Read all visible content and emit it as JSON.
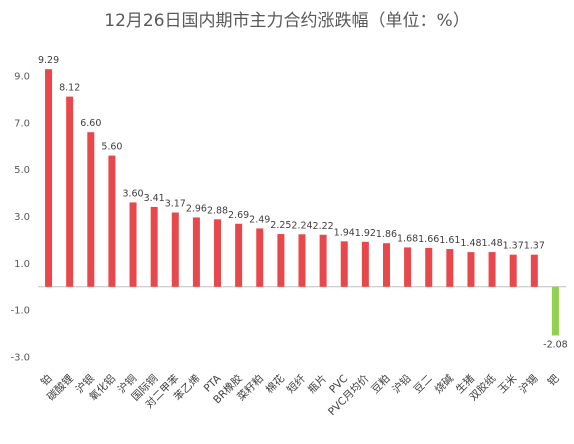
{
  "chart_data": {
    "type": "bar",
    "title": "12月26日国内期市主力合约涨跌幅（单位：%）",
    "xlabel": "",
    "ylabel": "",
    "ylim": [
      -3.0,
      9.0
    ],
    "yticks": [
      9.0,
      7.0,
      5.0,
      3.0,
      1.0,
      -1.0,
      -3.0
    ],
    "ytick_labels": [
      "9.0",
      "7.0",
      "5.0",
      "3.0",
      "1.0",
      "-1.0",
      "-3.0"
    ],
    "grid": false,
    "legend": "none",
    "categories": [
      "铂",
      "碳酸锂",
      "沪银",
      "氧化铝",
      "沪铜",
      "国际铜",
      "对二甲苯",
      "苯乙烯",
      "PTA",
      "BR橡胶",
      "菜籽粕",
      "棉花",
      "短纤",
      "瓶片",
      "PVC",
      "PVC月均价",
      "豆粕",
      "沪铅",
      "豆二",
      "烧碱",
      "生猪",
      "双胶纸",
      "玉米",
      "沪锡",
      "钯"
    ],
    "values": [
      9.29,
      8.12,
      6.6,
      5.6,
      3.6,
      3.41,
      3.17,
      2.96,
      2.88,
      2.69,
      2.49,
      2.25,
      2.24,
      2.22,
      1.94,
      1.92,
      1.86,
      1.68,
      1.66,
      1.61,
      1.48,
      1.48,
      1.37,
      1.37,
      -2.08
    ],
    "value_labels": [
      "9.29",
      "8.12",
      "6.60",
      "5.60",
      "3.60",
      "3.41",
      "3.17",
      "2.96",
      "2.88",
      "2.69",
      "2.49",
      "2.25",
      "2.24",
      "2.22",
      "1.94",
      "1.92",
      "1.86",
      "1.68",
      "1.66",
      "1.61",
      "1.48",
      "1.48",
      "1.37",
      "1.37",
      "-2.08"
    ],
    "colors": {
      "positive": "#e8474b",
      "negative": "#92d050",
      "axis": "#bfbfbf"
    }
  }
}
